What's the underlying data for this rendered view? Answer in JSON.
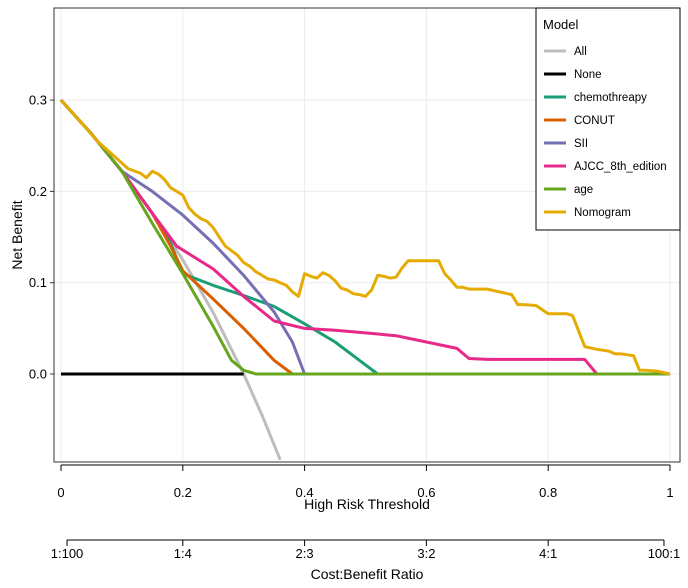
{
  "chart_data": {
    "type": "line",
    "title": "",
    "xlabel": "High Risk Threshold",
    "ylabel": "Net Benefit",
    "second_xlabel": "Cost:Benefit Ratio",
    "xlim": [
      0,
      1
    ],
    "ylim": [
      -0.1,
      0.4
    ],
    "x_ticks": [
      0,
      0.2,
      0.4,
      0.6,
      0.8,
      1
    ],
    "x_tick_labels": [
      "0",
      "0.2",
      "0.4",
      "0.6",
      "0.8",
      "1"
    ],
    "y_ticks": [
      0.0,
      0.1,
      0.2,
      0.3
    ],
    "y_tick_labels": [
      "0.0",
      "0.1",
      "0.2",
      "0.3"
    ],
    "ratio_ticks": [
      0.0099,
      0.2,
      0.4,
      0.6,
      0.8,
      0.9901
    ],
    "ratio_tick_labels": [
      "1:100",
      "1:4",
      "2:3",
      "3:2",
      "4:1",
      "100:1"
    ],
    "grid": true,
    "legend": {
      "title": "Model",
      "placement": "top-right"
    },
    "series": [
      {
        "name": "All",
        "color": "#bdbdbd",
        "x": [
          0.0,
          0.05,
          0.1,
          0.15,
          0.2,
          0.25,
          0.3,
          0.33,
          0.36
        ],
        "y": [
          0.3,
          0.263,
          0.222,
          0.176,
          0.125,
          0.067,
          0.0,
          -0.045,
          -0.094
        ]
      },
      {
        "name": "None",
        "color": "#000000",
        "x": [
          0.0,
          0.3
        ],
        "y": [
          0.0,
          0.0
        ]
      },
      {
        "name": "chemothreapy",
        "color": "#1b9e77",
        "x": [
          0.0,
          0.05,
          0.1,
          0.15,
          0.18,
          0.2,
          0.25,
          0.3,
          0.35,
          0.4,
          0.45,
          0.5,
          0.52,
          1.0
        ],
        "y": [
          0.3,
          0.263,
          0.222,
          0.176,
          0.143,
          0.11,
          0.097,
          0.086,
          0.074,
          0.055,
          0.035,
          0.01,
          0.0,
          0.0
        ]
      },
      {
        "name": "CONUT",
        "color": "#d95f02",
        "x": [
          0.0,
          0.05,
          0.1,
          0.15,
          0.18,
          0.2,
          0.25,
          0.3,
          0.35,
          0.38,
          0.4,
          1.0
        ],
        "y": [
          0.3,
          0.263,
          0.222,
          0.176,
          0.14,
          0.113,
          0.082,
          0.05,
          0.015,
          0.0,
          0.0,
          0.0
        ]
      },
      {
        "name": "SII",
        "color": "#7570b3",
        "x": [
          0.0,
          0.05,
          0.1,
          0.15,
          0.2,
          0.25,
          0.3,
          0.35,
          0.38,
          0.4,
          1.0
        ],
        "y": [
          0.3,
          0.263,
          0.222,
          0.2,
          0.174,
          0.143,
          0.108,
          0.068,
          0.035,
          0.0,
          0.0
        ]
      },
      {
        "name": "AJCC_8th_edition",
        "color": "#e7298a",
        "x": [
          0.0,
          0.05,
          0.1,
          0.15,
          0.19,
          0.25,
          0.3,
          0.35,
          0.4,
          0.45,
          0.5,
          0.55,
          0.6,
          0.65,
          0.67,
          0.7,
          0.75,
          0.8,
          0.86,
          0.88,
          1.0
        ],
        "y": [
          0.3,
          0.263,
          0.222,
          0.176,
          0.14,
          0.115,
          0.085,
          0.058,
          0.05,
          0.048,
          0.045,
          0.042,
          0.035,
          0.028,
          0.017,
          0.016,
          0.016,
          0.016,
          0.016,
          0.0,
          0.0
        ]
      },
      {
        "name": "age",
        "color": "#66a61e",
        "x": [
          0.0,
          0.05,
          0.1,
          0.15,
          0.2,
          0.25,
          0.28,
          0.3,
          0.32,
          1.0
        ],
        "y": [
          0.3,
          0.263,
          0.222,
          0.165,
          0.11,
          0.052,
          0.015,
          0.004,
          0.0,
          0.0
        ]
      },
      {
        "name": "Nomogram",
        "color": "#e6ab02",
        "x": [
          0.0,
          0.03,
          0.06,
          0.09,
          0.11,
          0.13,
          0.14,
          0.15,
          0.16,
          0.17,
          0.18,
          0.19,
          0.2,
          0.21,
          0.22,
          0.23,
          0.24,
          0.25,
          0.26,
          0.27,
          0.28,
          0.29,
          0.3,
          0.31,
          0.32,
          0.33,
          0.34,
          0.35,
          0.36,
          0.37,
          0.38,
          0.39,
          0.4,
          0.41,
          0.42,
          0.43,
          0.44,
          0.45,
          0.46,
          0.47,
          0.48,
          0.49,
          0.5,
          0.51,
          0.52,
          0.53,
          0.54,
          0.55,
          0.56,
          0.57,
          0.58,
          0.6,
          0.62,
          0.63,
          0.64,
          0.65,
          0.66,
          0.67,
          0.7,
          0.74,
          0.75,
          0.76,
          0.78,
          0.8,
          0.82,
          0.83,
          0.84,
          0.86,
          0.88,
          0.9,
          0.91,
          0.92,
          0.94,
          0.95,
          0.96,
          0.98,
          1.0
        ],
        "y": [
          0.3,
          0.278,
          0.255,
          0.237,
          0.225,
          0.22,
          0.215,
          0.222,
          0.219,
          0.213,
          0.204,
          0.2,
          0.196,
          0.182,
          0.175,
          0.17,
          0.167,
          0.16,
          0.15,
          0.14,
          0.135,
          0.13,
          0.122,
          0.118,
          0.112,
          0.108,
          0.104,
          0.103,
          0.1,
          0.097,
          0.09,
          0.085,
          0.11,
          0.107,
          0.105,
          0.111,
          0.108,
          0.102,
          0.094,
          0.092,
          0.088,
          0.087,
          0.085,
          0.092,
          0.108,
          0.107,
          0.105,
          0.106,
          0.116,
          0.124,
          0.124,
          0.124,
          0.124,
          0.11,
          0.103,
          0.095,
          0.095,
          0.093,
          0.093,
          0.087,
          0.076,
          0.076,
          0.075,
          0.066,
          0.066,
          0.066,
          0.064,
          0.03,
          0.027,
          0.025,
          0.022,
          0.022,
          0.02,
          0.004,
          0.004,
          0.003,
          0.0
        ]
      }
    ]
  }
}
